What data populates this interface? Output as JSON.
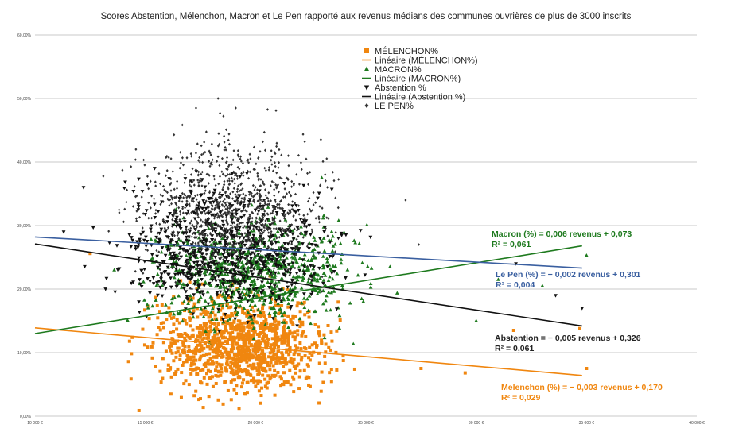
{
  "chart_data": {
    "type": "scatter",
    "title": "Scores Abstention, Mélenchon, Macron et Le Pen rapporté aux revenus médians des communes ouvrières de plus de 3000 inscrits",
    "xlabel": "",
    "ylabel": "",
    "xlim": [
      10000,
      40000
    ],
    "ylim": [
      0,
      0.6
    ],
    "x_ticks": [
      10000,
      15000,
      20000,
      25000,
      30000,
      35000,
      40000
    ],
    "x_tick_labels": [
      "10 000 €",
      "15 000 €",
      "20 000 €",
      "25 000 €",
      "30 000 €",
      "35 000 €",
      "40 000 €"
    ],
    "y_ticks": [
      0,
      0.1,
      0.2,
      0.3,
      0.4,
      0.5,
      0.6
    ],
    "y_tick_labels": [
      "0,00%",
      "10,00%",
      "20,00%",
      "30,00%",
      "40,00%",
      "50,00%",
      "60,00%"
    ],
    "grid": true,
    "legend_position": "top-center",
    "legend": [
      {
        "label": "MÉLENCHON%",
        "marker": "square",
        "color": "#f0860f"
      },
      {
        "label": "Linéaire (MÉLENCHON%)",
        "marker": "line",
        "color": "#f0860f"
      },
      {
        "label": "MACRON%",
        "marker": "triangle",
        "color": "#1e7a1e"
      },
      {
        "label": "Linéaire (MACRON%)",
        "marker": "line",
        "color": "#1e7a1e"
      },
      {
        "label": "Abstention %",
        "marker": "triangle-down",
        "color": "#111111"
      },
      {
        "label": "Linéaire (Abstention %)",
        "marker": "line",
        "color": "#111111"
      },
      {
        "label": "LE PEN%",
        "marker": "diamond",
        "color": "#333333"
      }
    ],
    "series": [
      {
        "name": "MÉLENCHON%",
        "marker": "square",
        "color": "#f0860f",
        "cloud": {
          "x_center": 19300,
          "x_spread": 1900,
          "y_center": 0.112,
          "y_spread": 0.035,
          "count": 1100
        },
        "x": [
          12500,
          27500,
          29500,
          35000,
          34700,
          31700
        ],
        "y": [
          0.256,
          0.075,
          0.068,
          0.075,
          0.138,
          0.135
        ]
      },
      {
        "name": "MACRON%",
        "marker": "triangle",
        "color": "#1e7a1e",
        "cloud": {
          "x_center": 20000,
          "x_spread": 2200,
          "y_center": 0.225,
          "y_spread": 0.038,
          "count": 800
        },
        "x": [
          31000,
          35000,
          33000,
          30000,
          23000
        ],
        "y": [
          0.215,
          0.253,
          0.205,
          0.15,
          0.375
        ]
      },
      {
        "name": "Abstention %",
        "marker": "triangle-down",
        "color": "#111111",
        "cloud": {
          "x_center": 18800,
          "x_spread": 2300,
          "y_center": 0.26,
          "y_spread": 0.045,
          "count": 800
        },
        "x": [
          34800,
          31800,
          33600,
          12200,
          11300
        ],
        "y": [
          0.17,
          0.24,
          0.19,
          0.36,
          0.29
        ]
      },
      {
        "name": "LE PEN%",
        "marker": "diamond",
        "color": "#333333",
        "cloud": {
          "x_center": 18900,
          "x_spread": 2000,
          "y_center": 0.33,
          "y_spread": 0.05,
          "count": 1000
        },
        "x": [
          18300,
          19100,
          17300,
          16800,
          26800,
          27400
        ],
        "y": [
          0.5,
          0.485,
          0.485,
          0.38,
          0.34,
          0.27
        ]
      }
    ],
    "trendlines": [
      {
        "name": "Linéaire (MÉLENCHON%)",
        "color": "#f0860f",
        "x": [
          10000,
          34800
        ],
        "y": [
          0.139,
          0.064
        ]
      },
      {
        "name": "Linéaire (MACRON%)",
        "color": "#1e7a1e",
        "x": [
          10000,
          34800
        ],
        "y": [
          0.13,
          0.268
        ]
      },
      {
        "name": "Linéaire (Abstention %)",
        "color": "#111111",
        "x": [
          10000,
          34800
        ],
        "y": [
          0.271,
          0.142
        ]
      },
      {
        "name": "Linéaire (LE PEN%)",
        "color": "#3a5fa0",
        "x": [
          10000,
          34800
        ],
        "y": [
          0.282,
          0.233
        ]
      }
    ],
    "annotations": [
      {
        "id": "macron",
        "color": "#1e7a1e",
        "line1": "Macron (%) = 0,006 revenus + 0,073",
        "line2": "R² = 0,061"
      },
      {
        "id": "lepen",
        "color": "#3a5fa0",
        "line1": "Le Pen (%) = − 0,002 revenus + 0,301",
        "line2": "R² = 0,004"
      },
      {
        "id": "abstention",
        "color": "#222222",
        "line1": "Abstention = − 0,005 revenus + 0,326",
        "line2": "R² = 0,061"
      },
      {
        "id": "melenchon",
        "color": "#f0860f",
        "line1": "Melenchon (%) = − 0,003 revenus + 0,170",
        "line2": "R² = 0,029"
      }
    ]
  }
}
